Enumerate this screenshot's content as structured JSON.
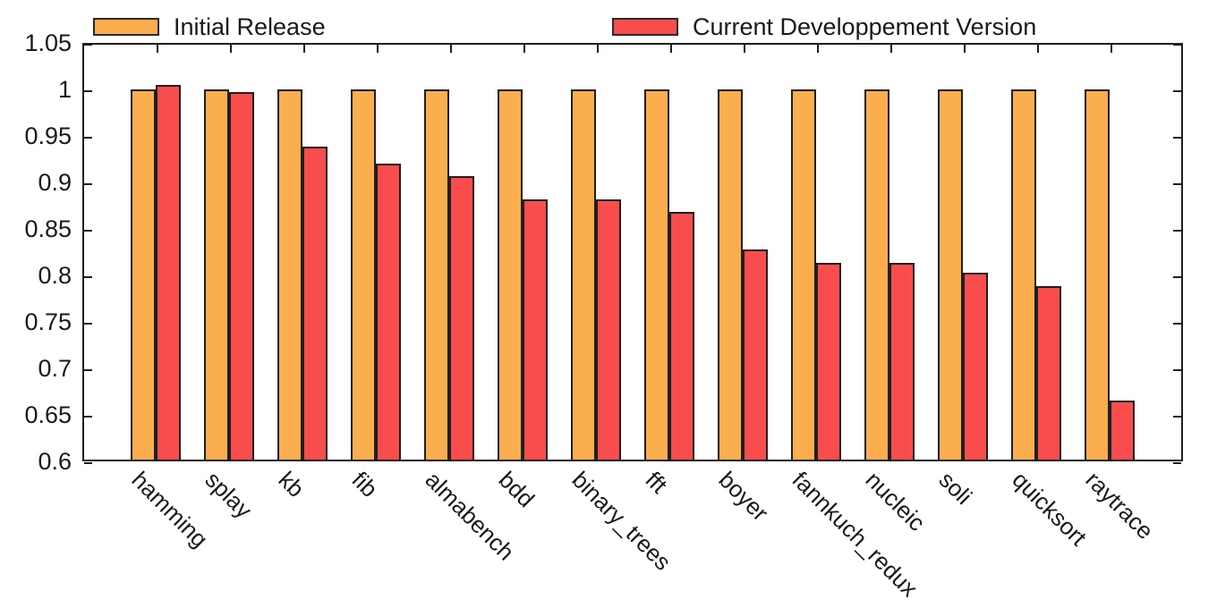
{
  "chart_data": {
    "type": "bar",
    "title": "",
    "xlabel": "",
    "ylabel": "",
    "categories": [
      "hamming",
      "splay",
      "kb",
      "fib",
      "almabench",
      "bdd",
      "binary_trees",
      "fft",
      "boyer",
      "fannkuch_redux",
      "nucleic",
      "soli",
      "quicksort",
      "raytrace"
    ],
    "series": [
      {
        "name": "Initial Release",
        "color": "#FAAE4E",
        "values": [
          1.0,
          1.0,
          1.0,
          1.0,
          1.0,
          1.0,
          1.0,
          1.0,
          1.0,
          1.0,
          1.0,
          1.0,
          1.0,
          1.0
        ]
      },
      {
        "name": "Current Developpement Version",
        "color": "#F94D4D",
        "values": [
          1.005,
          0.997,
          0.938,
          0.92,
          0.907,
          0.882,
          0.882,
          0.868,
          0.828,
          0.813,
          0.813,
          0.803,
          0.788,
          0.665
        ]
      }
    ],
    "ylim": [
      0.6,
      1.05
    ],
    "ytick_step": 0.05,
    "yticks": [
      "1.05",
      "1",
      "0.95",
      "0.9",
      "0.85",
      "0.8",
      "0.75",
      "0.7",
      "0.65",
      "0.6"
    ],
    "grid": false,
    "legend_position": "top",
    "bar_edge_color": "#1f1f1f",
    "axis_color": "#1f1f1f",
    "background": "#ffffff"
  }
}
